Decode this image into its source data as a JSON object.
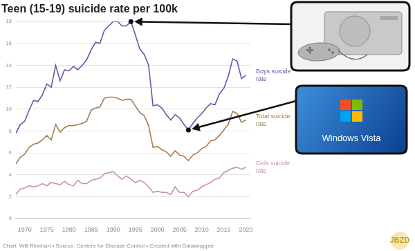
{
  "chart_data": {
    "type": "line",
    "title": "Teen (15-19) suicide rate per 100k",
    "source": "Chart: Will Rinehart • Source: Centers for Disease Control • Created with Datawrapper",
    "watermark": "JBZD",
    "x": [
      1968,
      1969,
      1970,
      1971,
      1972,
      1973,
      1974,
      1975,
      1976,
      1977,
      1978,
      1979,
      1980,
      1981,
      1982,
      1983,
      1984,
      1985,
      1986,
      1987,
      1988,
      1989,
      1990,
      1991,
      1992,
      1993,
      1994,
      1995,
      1996,
      1997,
      1998,
      1999,
      2000,
      2001,
      2002,
      2003,
      2004,
      2005,
      2006,
      2007,
      2008,
      2009,
      2010,
      2011,
      2012,
      2013,
      2014,
      2015,
      2016,
      2017,
      2018,
      2019,
      2020
    ],
    "series": [
      {
        "name": "Boys suicide rate",
        "color": "#5b5ba8",
        "values": [
          7.8,
          8.6,
          8.9,
          9.9,
          10.8,
          10.7,
          11.3,
          12.3,
          12.0,
          14.0,
          12.6,
          13.6,
          13.5,
          13.9,
          13.6,
          14.0,
          14.5,
          15.4,
          16.1,
          16.0,
          17.2,
          17.6,
          18.0,
          18.0,
          17.6,
          17.6,
          18.0,
          16.8,
          15.5,
          15.0,
          14.0,
          10.3,
          10.4,
          10.1,
          9.5,
          9.0,
          9.5,
          9.2,
          8.6,
          8.1,
          8.7,
          9.2,
          9.6,
          10.1,
          10.5,
          10.4,
          11.4,
          11.9,
          13.0,
          14.6,
          14.4,
          12.8,
          13.1
        ]
      },
      {
        "name": "Total suicide rate",
        "color": "#a67c4e",
        "values": [
          5.0,
          5.6,
          5.9,
          6.5,
          6.8,
          6.9,
          7.2,
          7.6,
          7.2,
          8.6,
          7.9,
          8.3,
          8.5,
          8.5,
          8.6,
          8.7,
          8.9,
          9.9,
          10.1,
          10.2,
          11.0,
          11.1,
          11.1,
          11.0,
          10.8,
          10.9,
          10.9,
          10.3,
          9.7,
          9.4,
          8.5,
          6.5,
          6.6,
          6.3,
          6.1,
          5.7,
          6.2,
          5.8,
          5.7,
          5.3,
          5.8,
          6.0,
          6.4,
          6.6,
          7.1,
          7.2,
          7.6,
          8.1,
          8.6,
          9.8,
          9.6,
          8.8,
          9.0
        ]
      },
      {
        "name": "Girls suicide rate",
        "color": "#c8939b",
        "values": [
          2.2,
          2.7,
          2.8,
          3.0,
          2.9,
          3.0,
          3.2,
          3.0,
          3.3,
          3.2,
          3.1,
          3.4,
          3.1,
          3.0,
          3.5,
          3.2,
          3.2,
          3.5,
          3.6,
          3.7,
          4.1,
          4.2,
          4.3,
          3.9,
          3.6,
          3.9,
          3.6,
          3.3,
          3.5,
          3.3,
          2.9,
          2.4,
          2.5,
          2.4,
          2.4,
          2.2,
          2.9,
          2.4,
          2.4,
          2.0,
          2.5,
          2.6,
          2.9,
          3.1,
          3.3,
          3.6,
          3.7,
          4.2,
          4.4,
          4.6,
          4.7,
          4.5,
          4.7
        ]
      }
    ],
    "xlim": [
      1968,
      2021
    ],
    "xticks": [
      1970,
      1975,
      1980,
      1985,
      1990,
      1995,
      2000,
      2005,
      2010,
      2015,
      2020
    ],
    "ylim": [
      0,
      18
    ],
    "yticks": [
      0,
      2,
      4,
      6,
      8,
      10,
      12,
      14,
      16,
      18
    ],
    "grid": true,
    "annotations": [
      {
        "x": 1994,
        "y": 18.0
      },
      {
        "x": 2007,
        "y": 8.1,
        "text": "Windows Vista"
      }
    ]
  }
}
